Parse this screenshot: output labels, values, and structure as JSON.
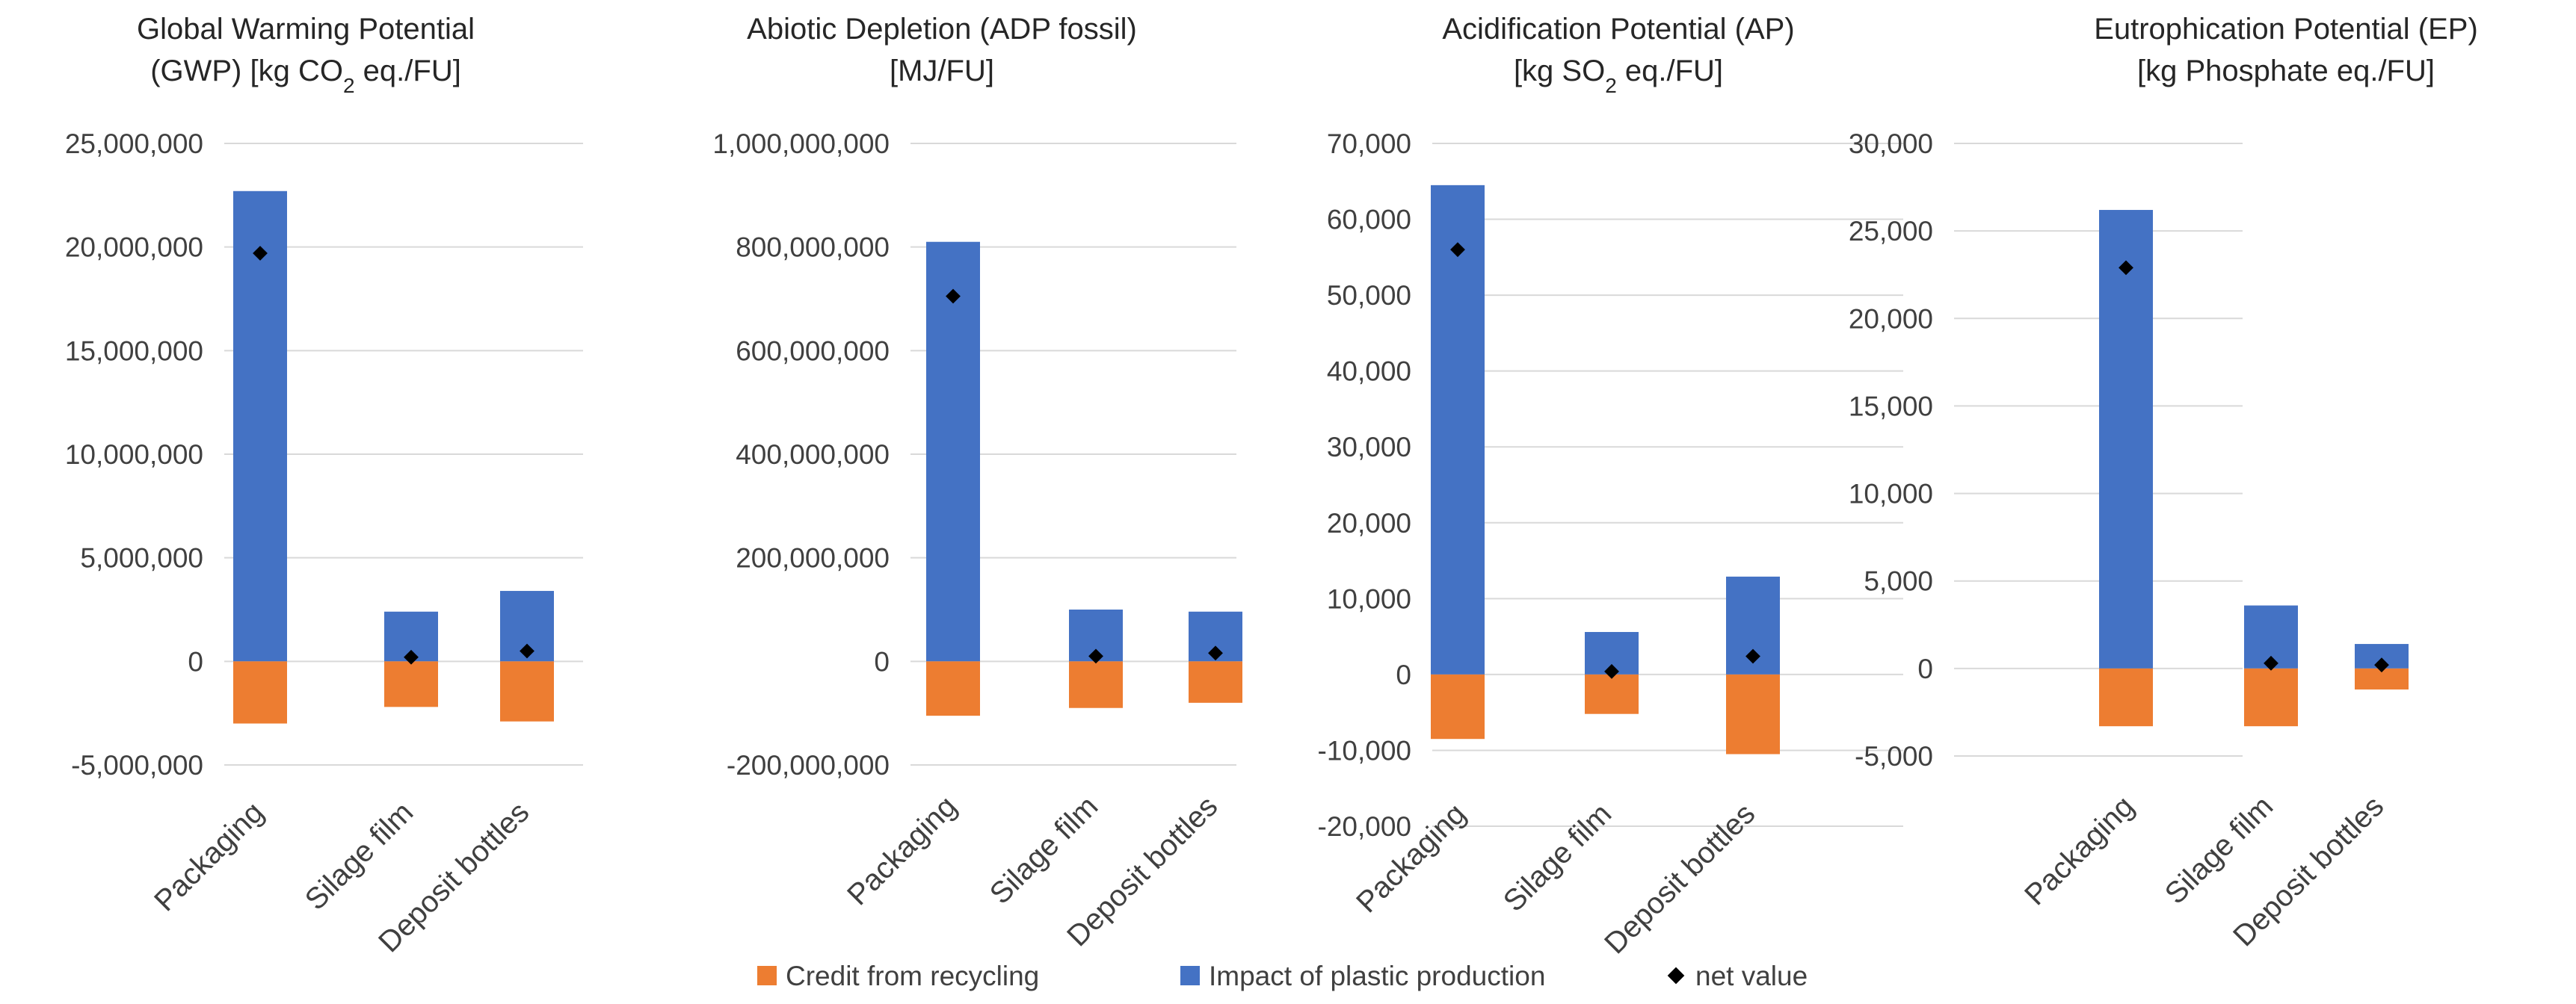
{
  "colors": {
    "credit": "#ED7D31",
    "impact": "#4472C4",
    "net": "#000000",
    "grid": "#D9D9D9",
    "text": "#404040"
  },
  "legend": {
    "credit": "Credit from recycling",
    "impact": "Impact of plastic production",
    "net": "net value"
  },
  "chart_data": [
    {
      "type": "bar",
      "title_line1": "Global Warming Potential",
      "title_line2_pre": "(GWP) [kg CO",
      "title_line2_sub": "2",
      "title_line2_post": " eq./FU]",
      "categories": [
        "Packaging",
        "Silage film",
        "Deposit bottles"
      ],
      "ylim": [
        -5000000,
        25000000
      ],
      "yticks": [
        -5000000,
        0,
        5000000,
        10000000,
        15000000,
        20000000,
        25000000
      ],
      "ytick_labels": [
        "-5,000,000",
        "0",
        "5,000,000",
        "10,000,000",
        "15,000,000",
        "20,000,000",
        "25,000,000"
      ],
      "series": [
        {
          "name": "Credit from recycling",
          "values": [
            -3000000,
            -2200000,
            -2900000
          ]
        },
        {
          "name": "Impact of plastic production",
          "values": [
            22700000,
            2400000,
            3400000
          ]
        },
        {
          "name": "net value",
          "values": [
            19700000,
            200000,
            500000
          ]
        }
      ]
    },
    {
      "type": "bar",
      "title_line1": "Abiotic Depletion (ADP fossil)",
      "title_line2_pre": "[MJ/FU]",
      "title_line2_sub": "",
      "title_line2_post": "",
      "categories": [
        "Packaging",
        "Silage film",
        "Deposit bottles"
      ],
      "ylim": [
        -200000000,
        1000000000
      ],
      "yticks": [
        -200000000,
        0,
        200000000,
        400000000,
        600000000,
        800000000,
        1000000000
      ],
      "ytick_labels": [
        "-200,000,000",
        "0",
        "200,000,000",
        "400,000,000",
        "600,000,000",
        "800,000,000",
        "1,000,000,000"
      ],
      "series": [
        {
          "name": "Credit from recycling",
          "values": [
            -105000000,
            -90000000,
            -80000000
          ]
        },
        {
          "name": "Impact of plastic production",
          "values": [
            810000000,
            100000000,
            96000000
          ]
        },
        {
          "name": "net value",
          "values": [
            705000000,
            10000000,
            16000000
          ]
        }
      ]
    },
    {
      "type": "bar",
      "title_line1": "Acidification Potential (AP)",
      "title_line2_pre": "[kg SO",
      "title_line2_sub": "2",
      "title_line2_post": " eq./FU]",
      "categories": [
        "Packaging",
        "Silage film",
        "Deposit bottles"
      ],
      "ylim": [
        -20000,
        70000
      ],
      "yticks": [
        -20000,
        -10000,
        0,
        10000,
        20000,
        30000,
        40000,
        50000,
        60000,
        70000
      ],
      "ytick_labels": [
        "-20,000",
        "-10,000",
        "0",
        "10,000",
        "20,000",
        "30,000",
        "40,000",
        "50,000",
        "60,000",
        "70,000"
      ],
      "series": [
        {
          "name": "Credit from recycling",
          "values": [
            -8500,
            -5200,
            -10500
          ]
        },
        {
          "name": "Impact of plastic production",
          "values": [
            64500,
            5600,
            12900
          ]
        },
        {
          "name": "net value",
          "values": [
            56000,
            400,
            2400
          ]
        }
      ]
    },
    {
      "type": "bar",
      "title_line1": "Eutrophication Potential (EP)",
      "title_line2_pre": "[kg Phosphate eq./FU]",
      "title_line2_sub": "",
      "title_line2_post": "",
      "categories": [
        "Packaging",
        "Silage film",
        "Deposit bottles"
      ],
      "ylim": [
        -5000,
        30000
      ],
      "yticks": [
        -5000,
        0,
        5000,
        10000,
        15000,
        20000,
        25000,
        30000
      ],
      "ytick_labels": [
        "-5,000",
        "0",
        "5,000",
        "10,000",
        "15,000",
        "20,000",
        "25,000",
        "30,000"
      ],
      "series": [
        {
          "name": "Credit from recycling",
          "values": [
            -3300,
            -3300,
            -1200
          ]
        },
        {
          "name": "Impact of plastic production",
          "values": [
            26200,
            3600,
            1400
          ]
        },
        {
          "name": "net value",
          "values": [
            22900,
            300,
            200
          ]
        }
      ]
    }
  ]
}
